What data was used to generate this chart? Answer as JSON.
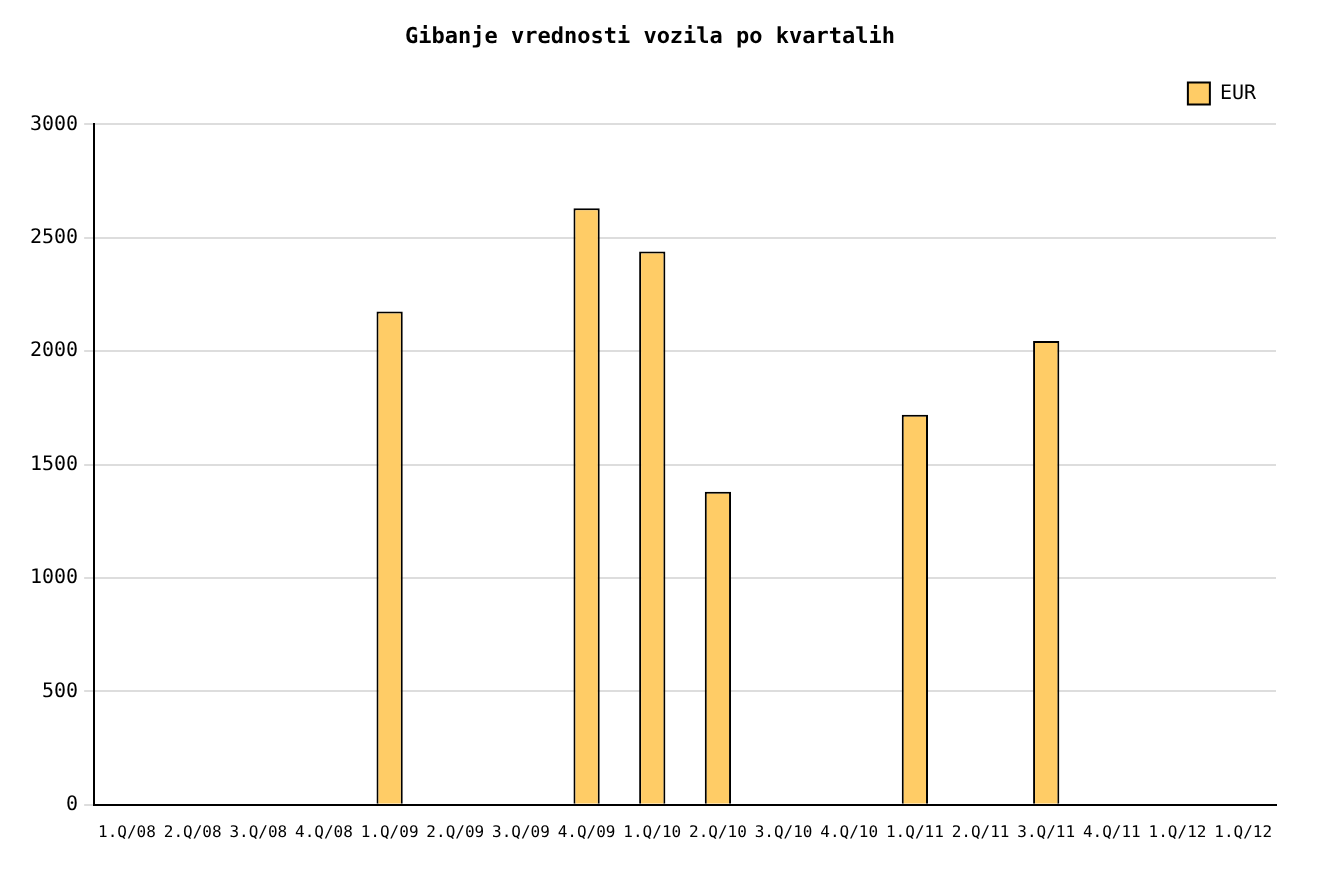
{
  "chart_data": {
    "type": "bar",
    "title": "Gibanje vrednosti vozila po kvartalih",
    "categories": [
      "1.Q/08",
      "2.Q/08",
      "3.Q/08",
      "4.Q/08",
      "1.Q/09",
      "2.Q/09",
      "3.Q/09",
      "4.Q/09",
      "1.Q/10",
      "2.Q/10",
      "3.Q/10",
      "4.Q/10",
      "1.Q/11",
      "2.Q/11",
      "3.Q/11",
      "4.Q/11",
      "1.Q/12",
      "1.Q/12"
    ],
    "series": [
      {
        "name": "EUR",
        "color": "#ffcc66",
        "values": [
          null,
          null,
          null,
          null,
          2175,
          null,
          null,
          2630,
          2440,
          1380,
          null,
          null,
          1720,
          null,
          2045,
          null,
          null,
          null
        ]
      }
    ],
    "ylim": [
      0,
      3000
    ],
    "yticks": [
      0,
      500,
      1000,
      1500,
      2000,
      2500,
      3000
    ],
    "grid": "y",
    "legend": "top right"
  }
}
